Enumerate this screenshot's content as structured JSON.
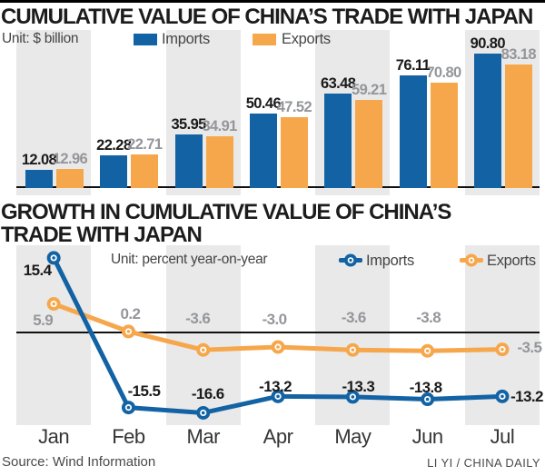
{
  "bar_chart": {
    "title": "CUMULATIVE VALUE OF CHINA’S TRADE WITH JAPAN",
    "unit_label": "Unit: $ billion"
  },
  "line_chart": {
    "title_line1": "GROWTH IN CUMULATIVE VALUE OF CHINA’S",
    "title_line2": "TRADE WITH JAPAN",
    "unit_label": "Unit: percent year-on-year"
  },
  "footer": {
    "source": "Source: Wind Information",
    "credit": "LI YI / CHINA DAILY"
  },
  "colors": {
    "imports": "#1363a4",
    "exports": "#f6a74c",
    "stripe": "#e9e9e9",
    "import_label_black": "#1a1a1a",
    "export_label_gray": "#94969a"
  },
  "chart_data": [
    {
      "type": "bar",
      "title": "CUMULATIVE VALUE OF CHINA’S TRADE WITH JAPAN",
      "unit": "$ billion",
      "categories": [
        "Jan",
        "Feb",
        "Mar",
        "Apr",
        "May",
        "Jun",
        "Jul"
      ],
      "series": [
        {
          "name": "Imports",
          "color": "#1363a4",
          "values": [
            12.08,
            22.28,
            35.95,
            50.46,
            63.48,
            76.11,
            90.8
          ]
        },
        {
          "name": "Exports",
          "color": "#f6a74c",
          "values": [
            12.96,
            22.71,
            34.91,
            47.52,
            59.21,
            70.8,
            83.18
          ]
        }
      ],
      "value_label_decimals": 2,
      "ylim": [
        0,
        95
      ],
      "gridlines": false,
      "legend_position": "top"
    },
    {
      "type": "line",
      "title": "GROWTH IN CUMULATIVE VALUE OF CHINA’S TRADE WITH JAPAN",
      "unit": "percent year-on-year",
      "categories": [
        "Jan",
        "Feb",
        "Mar",
        "Apr",
        "May",
        "Jun",
        "Jul"
      ],
      "series": [
        {
          "name": "Imports",
          "color": "#1363a4",
          "values": [
            15.4,
            -15.5,
            -16.6,
            -13.2,
            -13.3,
            -13.8,
            -13.2
          ]
        },
        {
          "name": "Exports",
          "color": "#f6a74c",
          "values": [
            5.9,
            0.2,
            -3.6,
            -3.0,
            -3.6,
            -3.8,
            -3.5
          ]
        }
      ],
      "value_label_decimals": 1,
      "zero_axis": true,
      "ylim": [
        -20,
        18
      ],
      "gridlines": false,
      "legend_position": "top"
    }
  ]
}
